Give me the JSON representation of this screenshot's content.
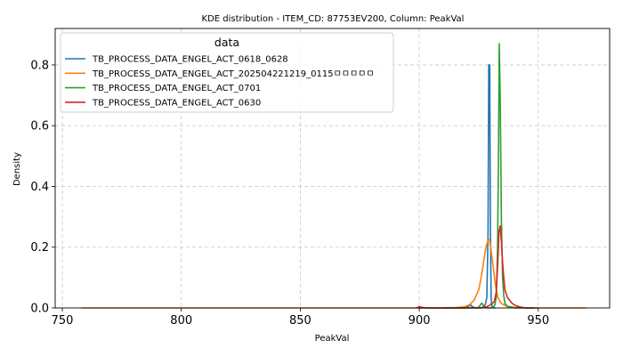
{
  "chart_data": {
    "type": "line",
    "title": "KDE distribution - ITEM_CD: 87753EV200, Column: PeakVal",
    "xlabel": "PeakVal",
    "ylabel": "Density",
    "xlim": [
      747,
      980
    ],
    "ylim": [
      0,
      0.92
    ],
    "xticks": [
      750,
      800,
      850,
      900,
      950
    ],
    "yticks": [
      0.0,
      0.2,
      0.4,
      0.6,
      0.8
    ],
    "grid": true,
    "grid_style": "dashed",
    "legend": {
      "title": "data",
      "position": "top-left"
    },
    "series": [
      {
        "name": "TB_PROCESS_DATA_ENGEL_ACT_0618_0628",
        "color": "#1f77b4",
        "x": [
          900,
          919,
          920.8,
          921.5,
          922.2,
          924,
          926,
          927,
          927.8,
          928.4,
          928.9,
          929.2,
          929.6,
          929.9,
          930.2,
          930.6,
          931.2,
          932
        ],
        "y": [
          0,
          0,
          0.006,
          0.011,
          0.004,
          0,
          0,
          0.004,
          0.012,
          0.035,
          0.25,
          0.8,
          0.8,
          0.25,
          0.03,
          0.005,
          0,
          0
        ]
      },
      {
        "name": "TB_PROCESS_DATA_ENGEL_ACT_202504221219_0115ㅁㅁㅁㅁㅁ",
        "color": "#ff7f0e",
        "x": [
          758,
          900,
          915,
          919,
          921,
          923,
          925,
          926,
          927,
          928,
          929,
          929.5,
          930,
          931,
          932,
          933,
          934,
          935,
          937,
          940,
          945,
          960,
          970
        ],
        "y": [
          0,
          0,
          0.001,
          0.004,
          0.01,
          0.025,
          0.06,
          0.1,
          0.15,
          0.2,
          0.225,
          0.225,
          0.2,
          0.14,
          0.075,
          0.035,
          0.02,
          0.012,
          0.005,
          0.002,
          0,
          0,
          0
        ]
      },
      {
        "name": "TB_PROCESS_DATA_ENGEL_ACT_0701",
        "color": "#2ca02c",
        "x": [
          910,
          924.5,
          925.5,
          926.3,
          927.2,
          928.5,
          930,
          931.2,
          931.8,
          932.4,
          932.9,
          933.3,
          933.6,
          934,
          934.5,
          935,
          935.5,
          936,
          937,
          940,
          950
        ],
        "y": [
          0,
          0,
          0.008,
          0.016,
          0.005,
          0,
          0,
          0.004,
          0.01,
          0.04,
          0.2,
          0.5,
          0.87,
          0.7,
          0.3,
          0.1,
          0.04,
          0.015,
          0.005,
          0,
          0
        ]
      },
      {
        "name": "TB_PROCESS_DATA_ENGEL_ACT_0630",
        "color": "#d62728",
        "x": [
          899,
          900,
          901,
          903,
          920,
          926,
          928,
          929.5,
          930.5,
          931.5,
          932.3,
          933,
          933.5,
          934,
          934.5,
          935,
          935.5,
          936,
          937,
          938,
          939,
          940,
          941,
          943,
          945,
          948
        ],
        "y": [
          0,
          0.004,
          0.002,
          0,
          0,
          0.001,
          0.003,
          0.008,
          0.014,
          0.02,
          0.05,
          0.15,
          0.25,
          0.27,
          0.22,
          0.15,
          0.1,
          0.06,
          0.035,
          0.025,
          0.015,
          0.01,
          0.006,
          0.002,
          0,
          0
        ]
      }
    ]
  }
}
